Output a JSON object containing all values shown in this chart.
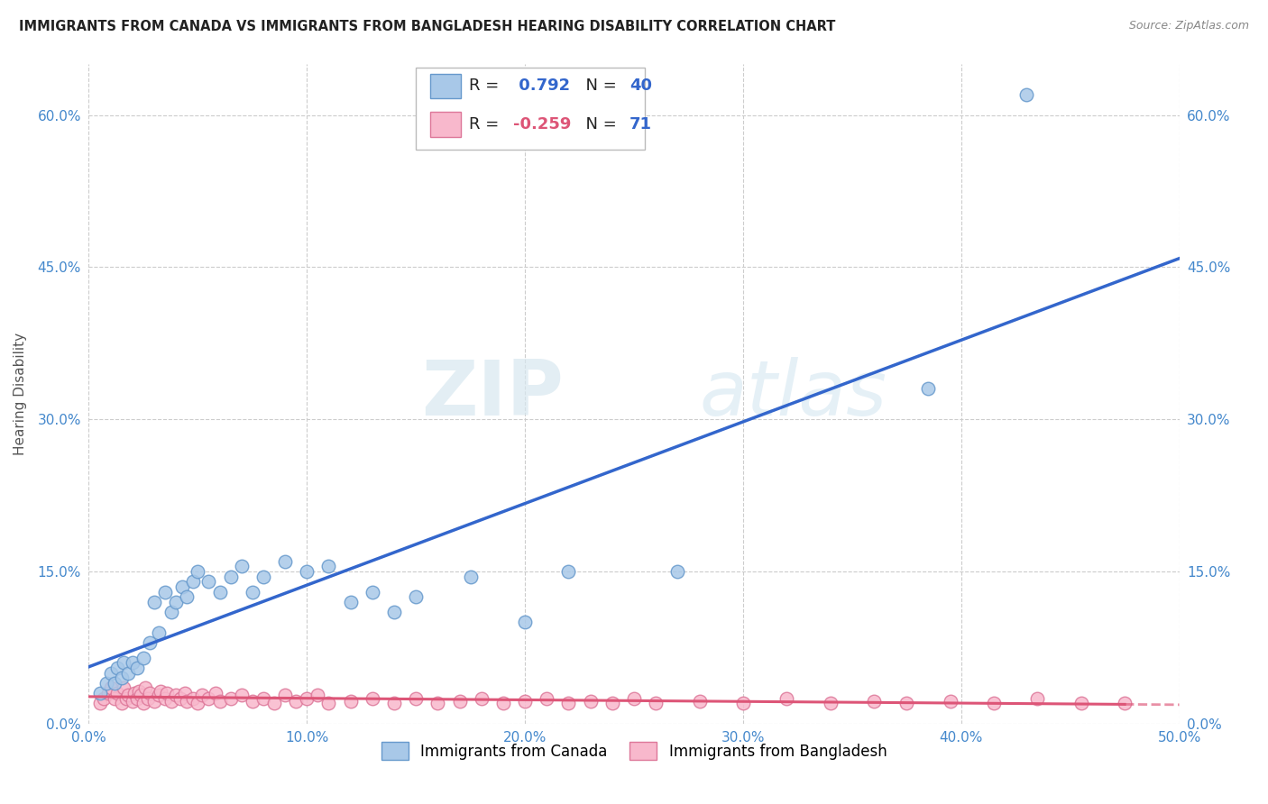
{
  "title": "IMMIGRANTS FROM CANADA VS IMMIGRANTS FROM BANGLADESH HEARING DISABILITY CORRELATION CHART",
  "source": "Source: ZipAtlas.com",
  "ylabel": "Hearing Disability",
  "xlim": [
    0.0,
    0.5
  ],
  "ylim": [
    0.0,
    0.65
  ],
  "xtick_labels": [
    "0.0%",
    "10.0%",
    "20.0%",
    "30.0%",
    "40.0%",
    "50.0%"
  ],
  "xtick_vals": [
    0.0,
    0.1,
    0.2,
    0.3,
    0.4,
    0.5
  ],
  "ytick_labels": [
    "0.0%",
    "15.0%",
    "30.0%",
    "45.0%",
    "60.0%"
  ],
  "ytick_vals": [
    0.0,
    0.15,
    0.3,
    0.45,
    0.6
  ],
  "canada_color": "#a8c8e8",
  "canada_edge_color": "#6699cc",
  "bangladesh_color": "#f8b8cc",
  "bangladesh_edge_color": "#dd7799",
  "canada_line_color": "#3366cc",
  "bangladesh_line_color": "#dd5577",
  "canada_R": 0.792,
  "canada_N": 40,
  "bangladesh_R": -0.259,
  "bangladesh_N": 71,
  "canada_scatter_x": [
    0.005,
    0.008,
    0.01,
    0.012,
    0.013,
    0.015,
    0.016,
    0.018,
    0.02,
    0.022,
    0.025,
    0.028,
    0.03,
    0.032,
    0.035,
    0.038,
    0.04,
    0.043,
    0.045,
    0.048,
    0.05,
    0.055,
    0.06,
    0.065,
    0.07,
    0.075,
    0.08,
    0.09,
    0.1,
    0.11,
    0.12,
    0.13,
    0.14,
    0.15,
    0.175,
    0.2,
    0.22,
    0.27,
    0.385,
    0.43
  ],
  "canada_scatter_y": [
    0.03,
    0.04,
    0.05,
    0.04,
    0.055,
    0.045,
    0.06,
    0.05,
    0.06,
    0.055,
    0.065,
    0.08,
    0.12,
    0.09,
    0.13,
    0.11,
    0.12,
    0.135,
    0.125,
    0.14,
    0.15,
    0.14,
    0.13,
    0.145,
    0.155,
    0.13,
    0.145,
    0.16,
    0.15,
    0.155,
    0.12,
    0.13,
    0.11,
    0.125,
    0.145,
    0.1,
    0.15,
    0.15,
    0.33,
    0.62
  ],
  "bangladesh_scatter_x": [
    0.005,
    0.007,
    0.009,
    0.01,
    0.012,
    0.013,
    0.015,
    0.016,
    0.017,
    0.018,
    0.02,
    0.021,
    0.022,
    0.023,
    0.024,
    0.025,
    0.026,
    0.027,
    0.028,
    0.03,
    0.032,
    0.033,
    0.035,
    0.036,
    0.038,
    0.04,
    0.042,
    0.044,
    0.045,
    0.048,
    0.05,
    0.052,
    0.055,
    0.058,
    0.06,
    0.065,
    0.07,
    0.075,
    0.08,
    0.085,
    0.09,
    0.095,
    0.1,
    0.105,
    0.11,
    0.12,
    0.13,
    0.14,
    0.15,
    0.16,
    0.17,
    0.18,
    0.19,
    0.2,
    0.21,
    0.22,
    0.23,
    0.24,
    0.25,
    0.26,
    0.28,
    0.3,
    0.32,
    0.34,
    0.36,
    0.375,
    0.395,
    0.415,
    0.435,
    0.455,
    0.475
  ],
  "bangladesh_scatter_y": [
    0.02,
    0.025,
    0.03,
    0.035,
    0.025,
    0.03,
    0.02,
    0.035,
    0.025,
    0.028,
    0.022,
    0.03,
    0.025,
    0.032,
    0.028,
    0.02,
    0.035,
    0.025,
    0.03,
    0.022,
    0.028,
    0.032,
    0.025,
    0.03,
    0.022,
    0.028,
    0.025,
    0.03,
    0.022,
    0.025,
    0.02,
    0.028,
    0.025,
    0.03,
    0.022,
    0.025,
    0.028,
    0.022,
    0.025,
    0.02,
    0.028,
    0.022,
    0.025,
    0.028,
    0.02,
    0.022,
    0.025,
    0.02,
    0.025,
    0.02,
    0.022,
    0.025,
    0.02,
    0.022,
    0.025,
    0.02,
    0.022,
    0.02,
    0.025,
    0.02,
    0.022,
    0.02,
    0.025,
    0.02,
    0.022,
    0.02,
    0.022,
    0.02,
    0.025,
    0.02,
    0.02
  ],
  "watermark_zip": "ZIP",
  "watermark_atlas": "atlas",
  "background_color": "#ffffff",
  "grid_color": "#cccccc",
  "tick_color": "#4488cc"
}
